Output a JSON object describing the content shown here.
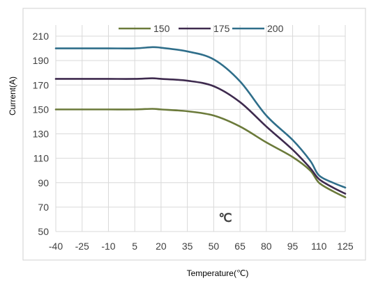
{
  "chart_data": {
    "type": "line",
    "title": "",
    "xlabel": "Temperature(℃)",
    "ylabel": "Current(A)",
    "annotation": "℃",
    "xlim": [
      -40,
      125
    ],
    "ylim": [
      50,
      210
    ],
    "x_ticks": [
      "-40",
      "-25",
      "-10",
      "5",
      "20",
      "35",
      "50",
      "65",
      "80",
      "95",
      "110",
      "125"
    ],
    "y_ticks": [
      "50",
      "70",
      "90",
      "110",
      "130",
      "150",
      "170",
      "190",
      "210"
    ],
    "grid": true,
    "legend_position": "top-center",
    "series": [
      {
        "name": "150",
        "color": "#6b7a3a",
        "x": [
          -40,
          -25,
          -10,
          5,
          15,
          20,
          35,
          50,
          65,
          80,
          95,
          105,
          110,
          118,
          125
        ],
        "y": [
          150,
          150,
          150,
          150,
          150.5,
          150,
          148.5,
          145,
          136,
          123,
          111,
          100,
          90,
          83,
          78
        ]
      },
      {
        "name": "175",
        "color": "#3e2a4e",
        "x": [
          -40,
          -25,
          -10,
          5,
          15,
          20,
          35,
          50,
          65,
          80,
          95,
          105,
          110,
          118,
          125
        ],
        "y": [
          175,
          175,
          175,
          175,
          175.5,
          175,
          173.5,
          169,
          156,
          136,
          117,
          102,
          93,
          86,
          81
        ]
      },
      {
        "name": "200",
        "color": "#2f6e8a",
        "x": [
          -40,
          -25,
          -10,
          5,
          15,
          20,
          35,
          50,
          65,
          80,
          95,
          105,
          110,
          118,
          125
        ],
        "y": [
          200,
          200,
          200,
          200,
          201,
          200.5,
          197.5,
          191,
          173,
          145,
          125,
          108,
          96,
          90,
          86
        ]
      }
    ]
  }
}
